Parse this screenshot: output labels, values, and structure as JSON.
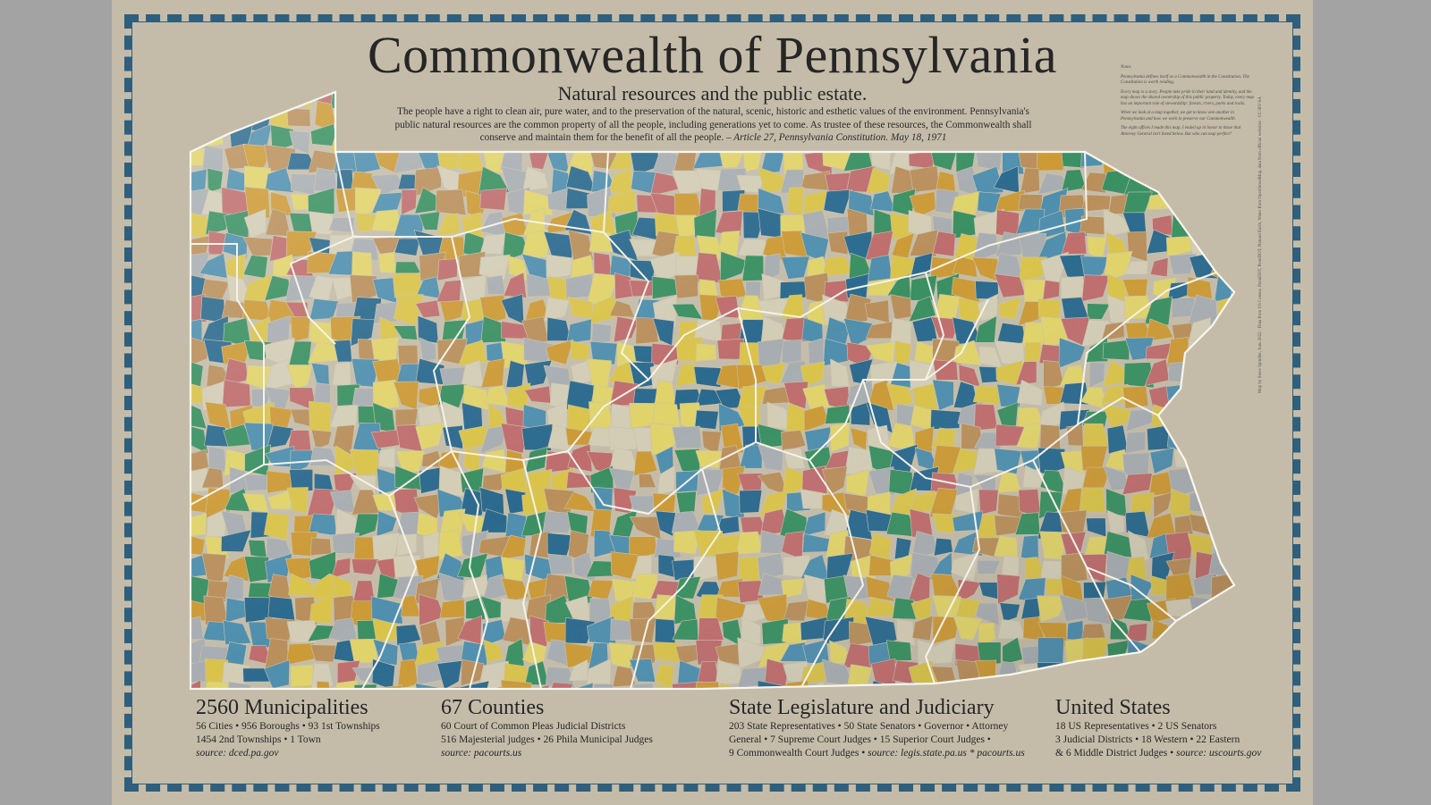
{
  "title": "Commonwealth of Pennsylvania",
  "subtitle": "Natural resources and the public estate.",
  "quote": {
    "text": "The people have a right to clean air, pure water, and to the preservation of the natural, scenic, historic and esthetic values of the environment. Pennsylvania's public natural resources are the common property of all the people, including generations yet to come. As trustee of these resources, the Commonwealth shall conserve and maintain them for the benefit of all the people.",
    "citation": "– Article 27, Pennsylvania Constitution. May 18, 1971"
  },
  "notes": [
    "Notes",
    "Pennsylvania defines itself as a Commonwealth in the Constitution. The Constitution is worth reading.",
    "Every map is a story. People take pride in their land and identity, and the map shows the shared ownership of this public property. Today, every map has an important role of stewardship: forests, rivers, parks and trails.",
    "When we look at a map together, we get to know one another in Pennsylvania and how we work to preserve our Commonwealth.",
    "The eight offices I made this map, I ended up in honor to those that Attorney General isn't listed below. But who can map perfect?"
  ],
  "credits": "Map by Steve Spindler, June 2022 · Data from US Census, PennDOT, PennDOT, Natural Earth, Water from OpenStreetMap, data from official websites · CC-BY-SA",
  "palette": [
    "#2b6a8e",
    "#3a9062",
    "#d9c34a",
    "#cc9a36",
    "#bf6d6d",
    "#a8adb1",
    "#d3cdb6",
    "#4f8fae",
    "#e0d36a",
    "#b98f5b"
  ],
  "stats": {
    "municipalities": {
      "heading": "2560 Municipalities",
      "lines": [
        "56 Cities • 956 Boroughs • 93 1st Townships",
        "1454 2nd Townships • 1 Town"
      ],
      "source": "source: dced.pa.gov"
    },
    "counties": {
      "heading": "67 Counties",
      "lines": [
        "60 Court of Common Pleas Judicial Districts",
        "516 Majesterial judges • 26 Phila Municipal Judges"
      ],
      "source": "source: pacourts.us"
    },
    "legislature": {
      "heading": "State Legislature and Judiciary",
      "lines": [
        "203 State Representatives • 50 State Senators • Governor • Attorney",
        "General • 7 Supreme Court Judges • 15 Superior Court Judges •"
      ],
      "last_line": "9 Commonwealth Court Judges •",
      "source": "source: legis.state.pa.us * pacourts.us"
    },
    "united_states": {
      "heading": "United States",
      "lines": [
        "18 US Representatives • 2 US Senators",
        "3 Judicial Districts • 18 Western • 22 Eastern"
      ],
      "last_line": "& 6 Middle District Judges •",
      "source": "source: uscourts.gov"
    }
  }
}
